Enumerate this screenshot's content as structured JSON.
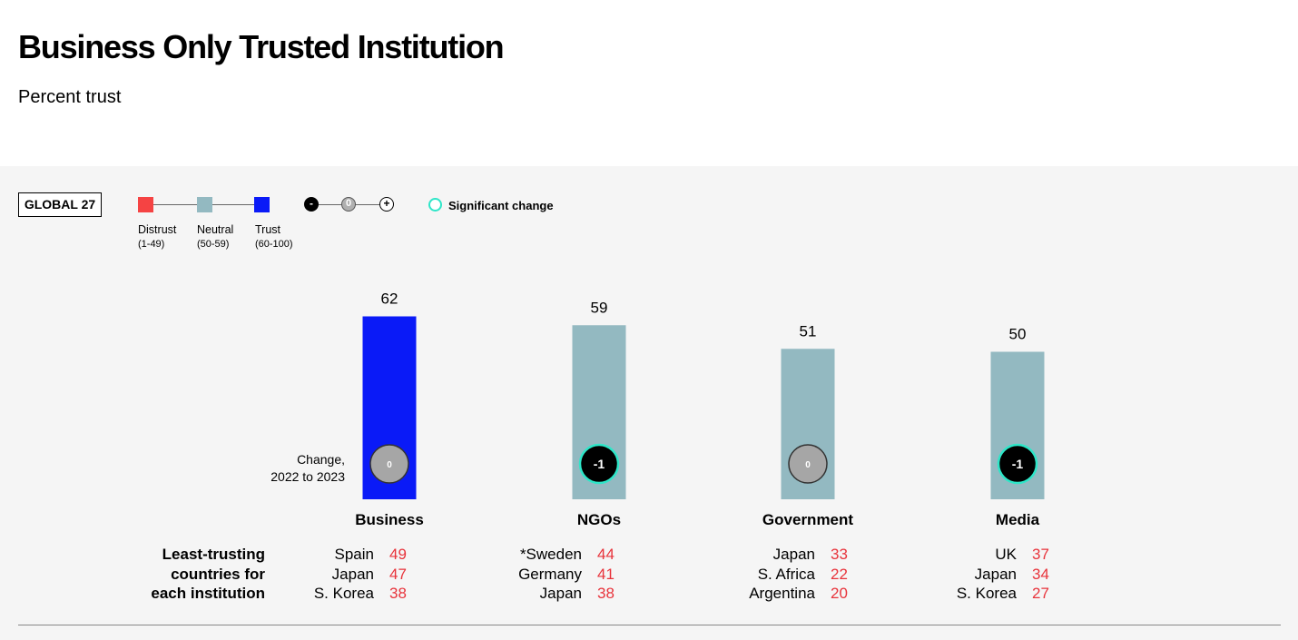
{
  "title": "Business Only Trusted Institution",
  "subtitle": "Percent trust",
  "region": "GLOBAL 27",
  "legend": {
    "levels": [
      {
        "label": "Distrust",
        "range": "(1-49)",
        "color": "#f54343"
      },
      {
        "label": "Neutral",
        "range": "(50-59)",
        "color": "#93b9c1"
      },
      {
        "label": "Trust",
        "range": "(60-100)",
        "color": "#0a1af7"
      }
    ],
    "change_icons": [
      "-",
      "0",
      "+"
    ],
    "significant_label": "Significant change",
    "significant_color": "#2ee6c8"
  },
  "change_label_line1": "Change,",
  "change_label_line2": "2022 to 2023",
  "least_trusting_label": [
    "Least-trusting",
    "countries for",
    "each institution"
  ],
  "chart_data": {
    "type": "bar",
    "categories": [
      "Business",
      "NGOs",
      "Government",
      "Media"
    ],
    "values": [
      62,
      59,
      51,
      50
    ],
    "changes": [
      "0",
      "-1",
      "0",
      "-1"
    ],
    "significant": [
      false,
      true,
      false,
      true
    ],
    "colors": [
      "#0a1af7",
      "#93b9c1",
      "#93b9c1",
      "#93b9c1"
    ],
    "ylim": [
      0,
      100
    ],
    "least_trusting": [
      [
        {
          "country": "Spain",
          "score": 49
        },
        {
          "country": "Japan",
          "score": 47
        },
        {
          "country": "S. Korea",
          "score": 38
        }
      ],
      [
        {
          "country": "*Sweden",
          "score": 44
        },
        {
          "country": "Germany",
          "score": 41
        },
        {
          "country": "Japan",
          "score": 38
        }
      ],
      [
        {
          "country": "Japan",
          "score": 33
        },
        {
          "country": "S. Africa",
          "score": 22
        },
        {
          "country": "Argentina",
          "score": 20
        }
      ],
      [
        {
          "country": "UK",
          "score": 37
        },
        {
          "country": "Japan",
          "score": 34
        },
        {
          "country": "S. Korea",
          "score": 27
        }
      ]
    ]
  }
}
